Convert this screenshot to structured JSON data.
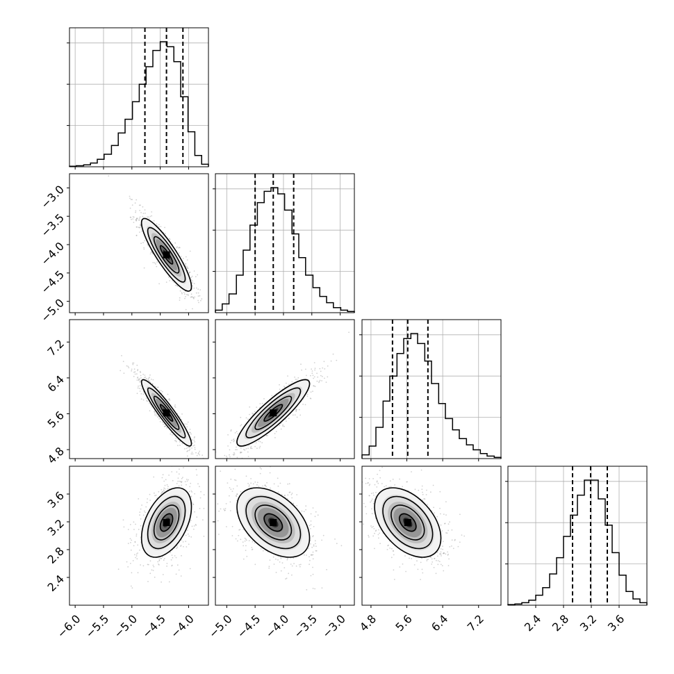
{
  "chart_data": {
    "type": "corner",
    "title": "",
    "parameters": [
      {
        "name": "",
        "range": [
          -6.1,
          -3.65
        ],
        "ticks": [
          -6.0,
          -5.5,
          -5.0,
          -4.5,
          -4.0
        ],
        "tick_labels": [
          "−6.0",
          "−5.5",
          "−5.0",
          "−4.5",
          "−4.0"
        ],
        "quantiles": [
          -4.77,
          -4.39,
          -4.1
        ]
      },
      {
        "name": "",
        "range": [
          -5.2,
          -2.75
        ],
        "ticks": [
          -5.0,
          -4.5,
          -4.0,
          -3.5,
          -3.0
        ],
        "tick_labels": [
          "−5.0",
          "−4.5",
          "−4.0",
          "−3.5",
          "−3.0"
        ],
        "quantiles": [
          -4.5,
          -4.18,
          -3.82
        ]
      },
      {
        "name": "",
        "range": [
          4.6,
          7.7
        ],
        "ticks": [
          4.8,
          5.6,
          6.4,
          7.2
        ],
        "tick_labels": [
          "4.8",
          "5.6",
          "6.4",
          "7.2"
        ],
        "quantiles": [
          5.28,
          5.62,
          6.07
        ]
      },
      {
        "name": "",
        "range": [
          2.0,
          4.0
        ],
        "ticks": [
          2.4,
          2.8,
          3.2,
          3.6
        ],
        "tick_labels": [
          "2.4",
          "2.8",
          "3.2",
          "3.6"
        ],
        "quantiles": [
          2.93,
          3.19,
          3.43
        ]
      }
    ],
    "marginal_histograms": [
      {
        "bin_edges": [
          -6.1,
          -5.98,
          -5.85,
          -5.73,
          -5.61,
          -5.49,
          -5.36,
          -5.24,
          -5.12,
          -4.99,
          -4.87,
          -4.75,
          -4.63,
          -4.5,
          -4.38,
          -4.26,
          -4.14,
          -4.01,
          -3.89,
          -3.77,
          -3.65
        ],
        "counts": [
          0.004,
          0.008,
          0.015,
          0.03,
          0.06,
          0.1,
          0.17,
          0.27,
          0.38,
          0.52,
          0.66,
          0.8,
          0.93,
          1.0,
          0.96,
          0.84,
          0.56,
          0.28,
          0.09,
          0.02
        ]
      },
      {
        "bin_edges": [
          -5.2,
          -5.08,
          -4.96,
          -4.83,
          -4.71,
          -4.59,
          -4.46,
          -4.34,
          -4.22,
          -4.1,
          -3.98,
          -3.85,
          -3.73,
          -3.61,
          -3.48,
          -3.36,
          -3.24,
          -3.12,
          -2.99,
          -2.87,
          -2.75
        ],
        "counts": [
          0.02,
          0.07,
          0.15,
          0.3,
          0.5,
          0.7,
          0.88,
          0.97,
          1.0,
          0.95,
          0.82,
          0.63,
          0.44,
          0.3,
          0.2,
          0.13,
          0.08,
          0.04,
          0.02,
          0.01
        ]
      },
      {
        "bin_edges": [
          4.6,
          4.76,
          4.91,
          5.07,
          5.22,
          5.38,
          5.53,
          5.69,
          5.84,
          6.0,
          6.15,
          6.31,
          6.46,
          6.62,
          6.77,
          6.93,
          7.08,
          7.24,
          7.39,
          7.55,
          7.7
        ],
        "counts": [
          0.03,
          0.1,
          0.25,
          0.46,
          0.66,
          0.84,
          0.96,
          1.0,
          0.92,
          0.78,
          0.6,
          0.44,
          0.32,
          0.23,
          0.16,
          0.11,
          0.07,
          0.04,
          0.02,
          0.01
        ]
      },
      {
        "bin_edges": [
          2.0,
          2.1,
          2.2,
          2.3,
          2.4,
          2.5,
          2.6,
          2.7,
          2.8,
          2.9,
          3.0,
          3.1,
          3.2,
          3.3,
          3.4,
          3.5,
          3.6,
          3.7,
          3.8,
          3.9,
          4.0
        ],
        "counts": [
          0.005,
          0.01,
          0.02,
          0.04,
          0.08,
          0.14,
          0.25,
          0.38,
          0.55,
          0.72,
          0.88,
          1.0,
          1.0,
          0.85,
          0.64,
          0.42,
          0.24,
          0.11,
          0.05,
          0.02
        ]
      }
    ],
    "joint_distributions": [
      {
        "x_param": 0,
        "y_param": 1,
        "mean": [
          -4.39,
          -4.18
        ],
        "sd": [
          0.22,
          0.32
        ],
        "correlation": -0.88
      },
      {
        "x_param": 0,
        "y_param": 2,
        "mean": [
          -4.39,
          5.62
        ],
        "sd": [
          0.22,
          0.37
        ],
        "correlation": -0.93
      },
      {
        "x_param": 1,
        "y_param": 2,
        "mean": [
          -4.18,
          5.62
        ],
        "sd": [
          0.32,
          0.37
        ],
        "correlation": 0.88
      },
      {
        "x_param": 0,
        "y_param": 3,
        "mean": [
          -4.39,
          3.19
        ],
        "sd": [
          0.22,
          0.25
        ],
        "correlation": 0.45
      },
      {
        "x_param": 1,
        "y_param": 3,
        "mean": [
          -4.18,
          3.19
        ],
        "sd": [
          0.32,
          0.25
        ],
        "correlation": -0.45
      },
      {
        "x_param": 2,
        "y_param": 3,
        "mean": [
          5.62,
          3.19
        ],
        "sd": [
          0.37,
          0.25
        ],
        "correlation": -0.45
      }
    ],
    "contour_levels_sigma": [
      0.5,
      1.0,
      1.5,
      2.0
    ],
    "colors": {
      "line": "#000000",
      "grid": "#b0b0b0",
      "points": "#9a9a9a",
      "density_dark": "#000000"
    },
    "grid": true
  }
}
